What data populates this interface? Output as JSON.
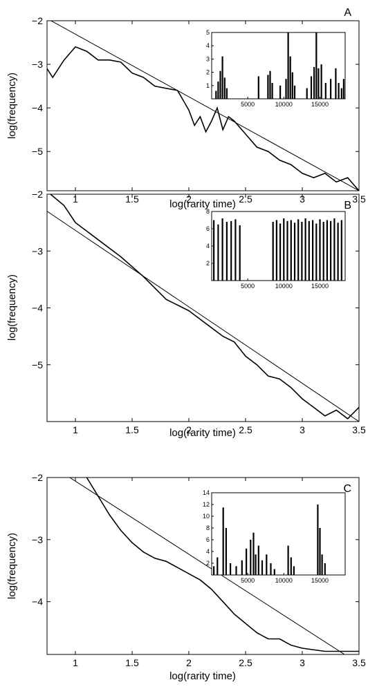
{
  "chart_data": [
    {
      "panel_label": "A",
      "type": "line",
      "xlabel": "log(rarity time)",
      "ylabel": "log(frequency)",
      "xlim": [
        0.75,
        3.5
      ],
      "ylim": [
        -5.9,
        -2
      ],
      "xticks": [
        1,
        1.5,
        2,
        2.5,
        3,
        3.5
      ],
      "yticks": [
        -2,
        -3,
        -4,
        -5
      ],
      "series": [
        {
          "style": "thick",
          "x": [
            0.75,
            0.8,
            0.9,
            1.0,
            1.1,
            1.2,
            1.3,
            1.4,
            1.5,
            1.6,
            1.7,
            1.8,
            1.9,
            2.0,
            2.05,
            2.1,
            2.15,
            2.2,
            2.25,
            2.3,
            2.35,
            2.4,
            2.5,
            2.6,
            2.7,
            2.8,
            2.9,
            3.0,
            3.1,
            3.2,
            3.3,
            3.4,
            3.5
          ],
          "y": [
            -3.1,
            -3.3,
            -2.9,
            -2.6,
            -2.7,
            -2.9,
            -2.9,
            -2.95,
            -3.2,
            -3.3,
            -3.5,
            -3.55,
            -3.6,
            -4.05,
            -4.4,
            -4.2,
            -4.55,
            -4.3,
            -4.0,
            -4.5,
            -4.2,
            -4.3,
            -4.6,
            -4.9,
            -5.0,
            -5.2,
            -5.3,
            -5.5,
            -5.6,
            -5.5,
            -5.7,
            -5.6,
            -5.9
          ]
        },
        {
          "style": "fit",
          "x": [
            0.75,
            3.5
          ],
          "y": [
            -1.95,
            -5.9
          ]
        }
      ],
      "inset": {
        "type": "bar",
        "xlim": [
          0,
          18500
        ],
        "ylim": [
          0,
          5
        ],
        "xticks": [
          5000,
          10000,
          15000
        ],
        "yticks": [
          1,
          2,
          3,
          4,
          5
        ],
        "x": [
          600,
          900,
          1200,
          1500,
          1800,
          2100,
          6500,
          7800,
          8100,
          8400,
          9500,
          10300,
          10600,
          10900,
          11200,
          11500,
          13200,
          13800,
          14200,
          14500,
          14800,
          15200,
          15800,
          16500,
          17200,
          17600,
          18000,
          18300
        ],
        "values": [
          0.6,
          1.3,
          2.1,
          3.2,
          1.6,
          0.8,
          1.7,
          1.8,
          2.1,
          1.2,
          1.0,
          1.5,
          5.0,
          3.2,
          2.0,
          1.0,
          0.8,
          1.7,
          2.4,
          5.0,
          2.3,
          2.6,
          1.2,
          1.5,
          2.3,
          1.2,
          0.8,
          1.5
        ]
      }
    },
    {
      "panel_label": "B",
      "type": "line",
      "xlabel": "log(rarity time)",
      "ylabel": "log(frequency)",
      "xlim": [
        0.75,
        3.5
      ],
      "ylim": [
        -6,
        -2
      ],
      "xticks": [
        1,
        1.5,
        2,
        2.5,
        3,
        3.5
      ],
      "yticks": [
        -2,
        -3,
        -4,
        -5
      ],
      "series": [
        {
          "style": "thick",
          "x": [
            0.75,
            0.9,
            1.0,
            1.2,
            1.4,
            1.6,
            1.8,
            1.9,
            2.0,
            2.1,
            2.2,
            2.3,
            2.4,
            2.5,
            2.6,
            2.7,
            2.8,
            2.9,
            3.0,
            3.1,
            3.2,
            3.3,
            3.4,
            3.5
          ],
          "y": [
            -1.95,
            -2.2,
            -2.5,
            -2.8,
            -3.1,
            -3.45,
            -3.85,
            -3.95,
            -4.05,
            -4.2,
            -4.35,
            -4.5,
            -4.6,
            -4.85,
            -5.0,
            -5.2,
            -5.25,
            -5.4,
            -5.6,
            -5.75,
            -5.9,
            -5.8,
            -5.95,
            -5.75
          ]
        },
        {
          "style": "fit",
          "x": [
            0.75,
            3.5
          ],
          "y": [
            -2.3,
            -6.0
          ]
        }
      ],
      "inset": {
        "type": "bar",
        "xlim": [
          0,
          18500
        ],
        "ylim": [
          0,
          8
        ],
        "xticks": [
          5000,
          10000,
          15000
        ],
        "yticks": [
          2,
          4,
          6,
          8
        ],
        "x": [
          300,
          900,
          1500,
          2100,
          2700,
          3300,
          3900,
          8500,
          9000,
          9500,
          10000,
          10500,
          11000,
          11500,
          12000,
          12500,
          13000,
          13500,
          14000,
          14500,
          15000,
          15500,
          16000,
          16500,
          17000,
          17500,
          18000
        ],
        "values": [
          7.0,
          6.5,
          7.2,
          6.8,
          6.9,
          7.1,
          6.4,
          6.8,
          7.0,
          6.6,
          7.2,
          6.9,
          7.0,
          6.7,
          7.1,
          6.8,
          7.2,
          6.9,
          7.0,
          6.6,
          7.1,
          6.8,
          7.0,
          6.9,
          7.2,
          6.7,
          7.0
        ]
      }
    },
    {
      "panel_label": "C",
      "type": "line",
      "xlabel": "log(rarity time)",
      "ylabel": "log(frequency)",
      "xlim": [
        0.75,
        3.5
      ],
      "ylim": [
        -4.85,
        -2
      ],
      "xticks": [
        1,
        1.5,
        2,
        2.5,
        3,
        3.5
      ],
      "yticks": [
        -2,
        -3,
        -4
      ],
      "series": [
        {
          "style": "thick",
          "x": [
            1.1,
            1.2,
            1.3,
            1.4,
            1.5,
            1.6,
            1.7,
            1.8,
            1.9,
            2.0,
            2.1,
            2.2,
            2.3,
            2.4,
            2.5,
            2.6,
            2.7,
            2.8,
            2.9,
            3.0,
            3.2,
            3.5
          ],
          "y": [
            -2.0,
            -2.3,
            -2.6,
            -2.85,
            -3.05,
            -3.2,
            -3.3,
            -3.35,
            -3.45,
            -3.55,
            -3.65,
            -3.8,
            -4.0,
            -4.2,
            -4.35,
            -4.5,
            -4.6,
            -4.6,
            -4.7,
            -4.75,
            -4.8,
            -4.8
          ]
        },
        {
          "style": "fit",
          "x": [
            0.95,
            3.5
          ],
          "y": [
            -2.0,
            -5.0
          ]
        }
      ],
      "inset": {
        "type": "bar",
        "xlim": [
          0,
          18500
        ],
        "ylim": [
          0,
          14
        ],
        "xticks": [
          5000,
          10000,
          15000
        ],
        "yticks": [
          2,
          4,
          6,
          8,
          10,
          12,
          14
        ],
        "x": [
          300,
          800,
          1600,
          2000,
          2600,
          3400,
          4200,
          4800,
          5400,
          5800,
          6100,
          6500,
          7000,
          7600,
          8200,
          8700,
          10600,
          11000,
          11400,
          14700,
          15000,
          15300,
          15700
        ],
        "values": [
          1.5,
          3.0,
          11.5,
          8.0,
          2.0,
          1.5,
          2.5,
          4.5,
          6.0,
          7.2,
          3.5,
          5.0,
          2.5,
          3.5,
          2.0,
          1.0,
          5.0,
          3.0,
          1.5,
          12.0,
          8.0,
          3.5,
          2.0
        ]
      }
    }
  ]
}
